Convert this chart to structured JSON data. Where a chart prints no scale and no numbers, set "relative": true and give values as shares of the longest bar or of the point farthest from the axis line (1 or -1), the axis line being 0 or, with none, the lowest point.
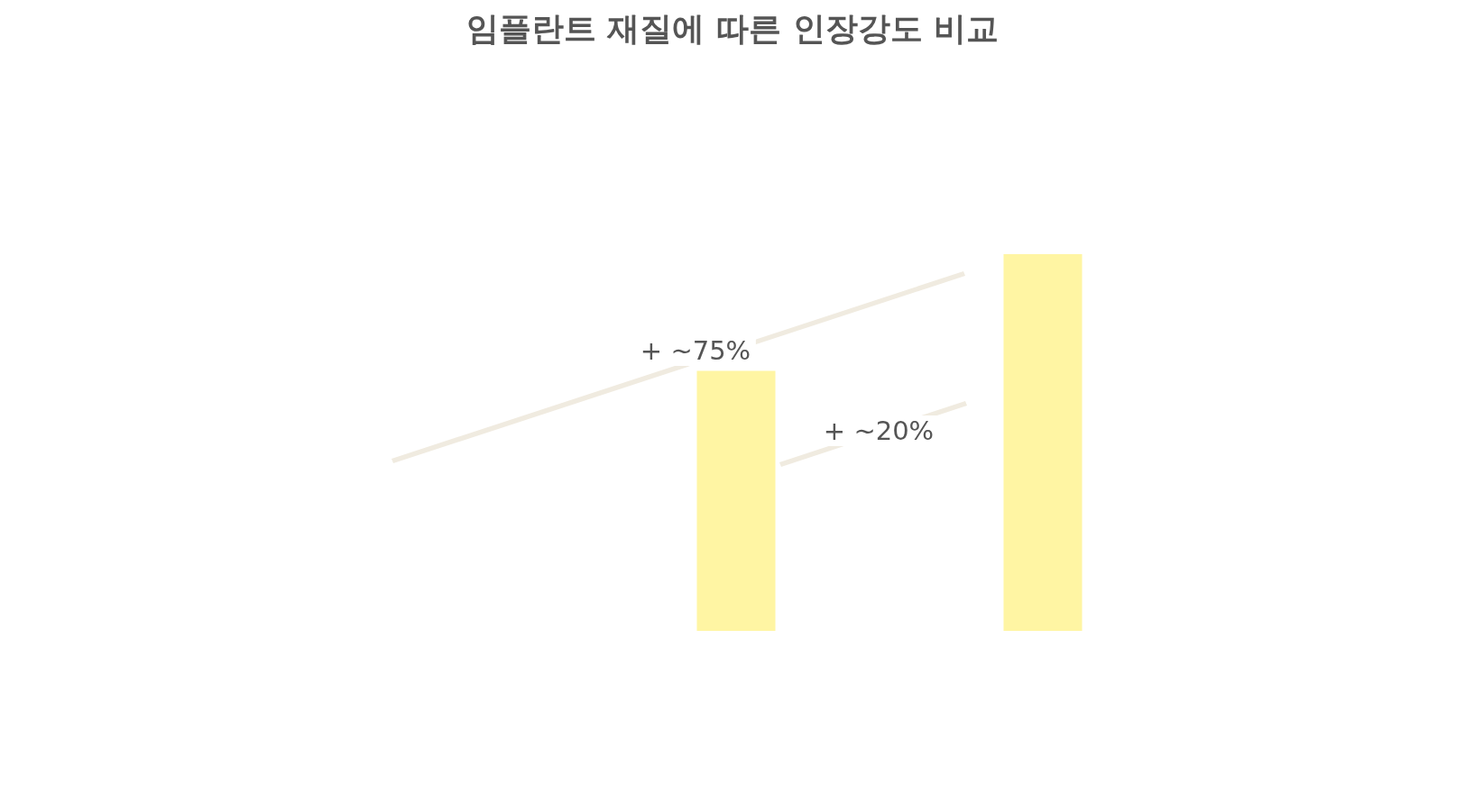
{
  "chart_data": {
    "type": "bar",
    "title": "임플란트 재질에 따른 인장강도 비교",
    "relative": true,
    "categories": [
      null,
      null
    ],
    "values": [
      0.69,
      1
    ],
    "color": "#fff5a3",
    "annotations": [
      "+ ~75%",
      "+ ~20%"
    ]
  }
}
